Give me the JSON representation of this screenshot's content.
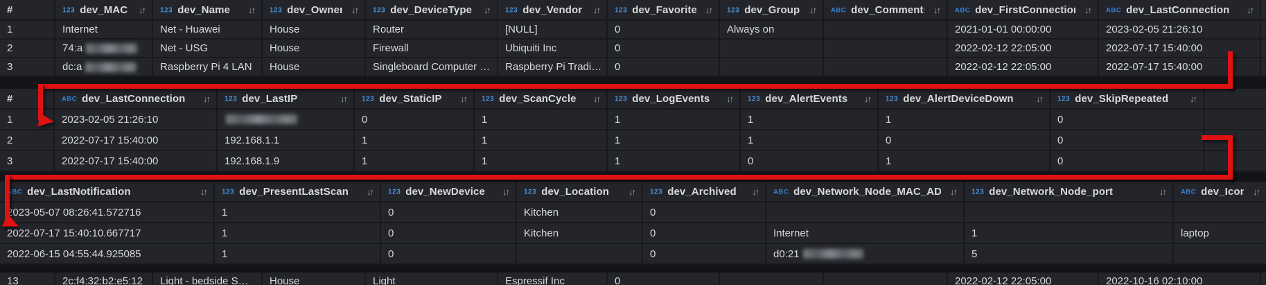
{
  "colors": {
    "page_background": "#131418",
    "cell_background": "#23252b",
    "grid_line": "#17191d",
    "text": "#d8d9da",
    "numeric_type_icon_blue": "#4a94dd",
    "string_type_icon_blue": "#3583d6",
    "sort_icon_gray": "#9da0a6",
    "annotation_red": "#de1212"
  },
  "icons": {
    "num": "123",
    "str": "ABC",
    "sort": "↓↑"
  },
  "tables": {
    "t1": {
      "cols": [
        {
          "l": "#",
          "s": false
        },
        {
          "i": "num",
          "l": "dev_MAC"
        },
        {
          "i": "num",
          "l": "dev_Name"
        },
        {
          "i": "num",
          "l": "dev_Owner"
        },
        {
          "i": "num",
          "l": "dev_DeviceType"
        },
        {
          "i": "num",
          "l": "dev_Vendor"
        },
        {
          "i": "num",
          "l": "dev_Favorite"
        },
        {
          "i": "num",
          "l": "dev_Group"
        },
        {
          "i": "str",
          "l": "dev_Comments"
        },
        {
          "i": "str",
          "l": "dev_FirstConnection"
        },
        {
          "i": "str",
          "l": "dev_LastConnection"
        },
        {
          "l": "",
          "s": false
        }
      ],
      "rows": [
        [
          "1",
          "Internet",
          "Net - Huawei",
          "House",
          "Router",
          "[NULL]",
          "0",
          "Always on",
          "",
          "2021-01-01 00:00:00",
          "2023-02-05 21:26:10",
          ""
        ],
        [
          "2",
          {
            "t": "74:a",
            "b": 74
          },
          "Net - USG",
          "House",
          "Firewall",
          "Ubiquiti Inc",
          "0",
          "",
          "",
          "2022-02-12 22:05:00",
          "2022-07-17 15:40:00",
          ""
        ],
        [
          "3",
          {
            "t": "dc:a",
            "b": 74
          },
          "Raspberry Pi 4 LAN",
          "House",
          "Singleboard Computer …",
          "Raspberry Pi Tradi…",
          "0",
          "",
          "",
          "2022-02-12 22:05:00",
          "2022-07-17 15:40:00",
          ""
        ]
      ]
    },
    "t2": {
      "cols": [
        {
          "l": "#",
          "s": false
        },
        {
          "i": "str",
          "l": "dev_LastConnection"
        },
        {
          "i": "num",
          "l": "dev_LastIP"
        },
        {
          "i": "num",
          "l": "dev_StaticIP"
        },
        {
          "i": "num",
          "l": "dev_ScanCycle"
        },
        {
          "i": "num",
          "l": "dev_LogEvents"
        },
        {
          "i": "num",
          "l": "dev_AlertEvents"
        },
        {
          "i": "num",
          "l": "dev_AlertDeviceDown"
        },
        {
          "i": "num",
          "l": "dev_SkipRepeated"
        },
        {
          "l": "",
          "s": false
        }
      ],
      "rows": [
        [
          "1",
          "2023-02-05 21:26:10",
          {
            "b": 103
          },
          "0",
          "1",
          "1",
          "1",
          "1",
          "0",
          ""
        ],
        [
          "2",
          "2022-07-17 15:40:00",
          "192.168.1.1",
          "1",
          "1",
          "1",
          "1",
          "0",
          "0",
          ""
        ],
        [
          "3",
          "2022-07-17 15:40:00",
          "192.168.1.9",
          "1",
          "1",
          "1",
          "0",
          "1",
          "0",
          ""
        ]
      ]
    },
    "t3": {
      "cols": [
        {
          "i": "str",
          "l": "dev_LastNotification"
        },
        {
          "i": "num",
          "l": "dev_PresentLastScan"
        },
        {
          "i": "num",
          "l": "dev_NewDevice"
        },
        {
          "i": "num",
          "l": "dev_Location"
        },
        {
          "i": "num",
          "l": "dev_Archived"
        },
        {
          "i": "str",
          "l": "dev_Network_Node_MAC_ADDR"
        },
        {
          "i": "num",
          "l": "dev_Network_Node_port"
        },
        {
          "i": "str",
          "l": "dev_Icon"
        }
      ],
      "rows": [
        [
          "2023-05-07 08:26:41.572716",
          "1",
          "0",
          "Kitchen",
          "0",
          "",
          "",
          ""
        ],
        [
          "2022-07-17 15:40:10.667717",
          "1",
          "0",
          "Kitchen",
          "0",
          "Internet",
          "1",
          "laptop"
        ],
        [
          "2022-06-15 04:55:44.925085",
          "1",
          "0",
          "",
          "0",
          {
            "t": "d0:21",
            "b": 87
          },
          "5",
          ""
        ]
      ]
    },
    "t4": {
      "header": false,
      "rows": [
        [
          "13",
          "2c:f4:32:b2:e5:12",
          "Light - bedside S…",
          "House",
          "Light",
          "Espressif Inc",
          "0",
          "",
          "",
          "2022-02-12 22:05:00",
          "2022-10-16 02:10:00",
          ""
        ]
      ]
    }
  }
}
